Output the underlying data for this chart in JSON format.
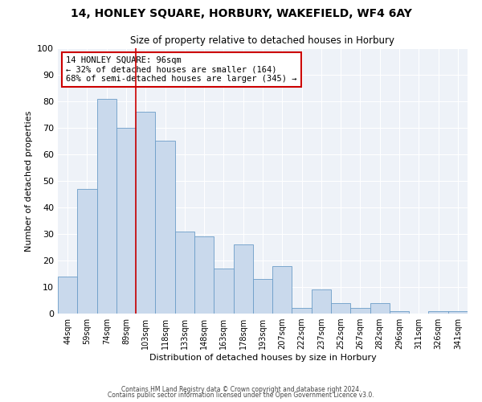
{
  "title": "14, HONLEY SQUARE, HORBURY, WAKEFIELD, WF4 6AY",
  "subtitle": "Size of property relative to detached houses in Horbury",
  "xlabel": "Distribution of detached houses by size in Horbury",
  "ylabel": "Number of detached properties",
  "bar_color": "#c9d9ec",
  "bar_edge_color": "#6b9dc8",
  "background_color": "#eef2f8",
  "grid_color": "#ffffff",
  "categories": [
    "44sqm",
    "59sqm",
    "74sqm",
    "89sqm",
    "103sqm",
    "118sqm",
    "133sqm",
    "148sqm",
    "163sqm",
    "178sqm",
    "193sqm",
    "207sqm",
    "222sqm",
    "237sqm",
    "252sqm",
    "267sqm",
    "282sqm",
    "296sqm",
    "311sqm",
    "326sqm",
    "341sqm"
  ],
  "values": [
    14,
    47,
    81,
    70,
    76,
    65,
    31,
    29,
    17,
    26,
    13,
    18,
    2,
    9,
    4,
    2,
    4,
    1,
    0,
    1,
    1
  ],
  "ylim": [
    0,
    100
  ],
  "yticks": [
    0,
    10,
    20,
    30,
    40,
    50,
    60,
    70,
    80,
    90,
    100
  ],
  "vline_x": 3.5,
  "vline_color": "#cc0000",
  "annotation_title": "14 HONLEY SQUARE: 96sqm",
  "annotation_line1": "← 32% of detached houses are smaller (164)",
  "annotation_line2": "68% of semi-detached houses are larger (345) →",
  "annotation_box_color": "#ffffff",
  "annotation_box_edge": "#cc0000",
  "footer_line1": "Contains HM Land Registry data © Crown copyright and database right 2024.",
  "footer_line2": "Contains public sector information licensed under the Open Government Licence v3.0."
}
